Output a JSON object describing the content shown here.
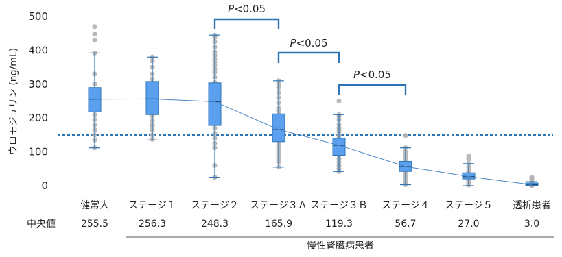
{
  "chart_data": {
    "type": "box",
    "ylabel": "ウロモジュリン (ng/mL)",
    "ylim": [
      0,
      500
    ],
    "yticks": [
      0,
      100,
      200,
      300,
      400,
      500
    ],
    "reference_line": {
      "value": 150,
      "style": "dotted",
      "color": "#2e75b6"
    },
    "categories": [
      "健常人",
      "ステージ１",
      "ステージ２",
      "ステージ３Ａ",
      "ステージ３Ｂ",
      "ステージ４",
      "ステージ５",
      "透析患者"
    ],
    "median_label": "中央値",
    "medians": [
      "255.5",
      "256.3",
      "248.3",
      "165.9",
      "119.3",
      "56.7",
      "27.0",
      "3.0"
    ],
    "group_label": "慢性腎臓病患者",
    "box_color": "#5aa0ee",
    "box_edge_color": "#2e75b6",
    "point_color": "#b3b3b3",
    "boxes": [
      {
        "category": "健常人",
        "min": 112,
        "q1": 218,
        "median": 255.5,
        "q3": 290,
        "max": 392,
        "points": [
          112,
          135,
          150,
          165,
          180,
          195,
          210,
          225,
          240,
          255,
          265,
          280,
          300,
          330,
          392,
          430,
          448,
          470
        ]
      },
      {
        "category": "ステージ１",
        "min": 135,
        "q1": 210,
        "median": 256.3,
        "q3": 308,
        "max": 380,
        "points": [
          137,
          150,
          165,
          175,
          180,
          192,
          205,
          220,
          235,
          250,
          262,
          275,
          288,
          300,
          315,
          330,
          350,
          368,
          380
        ]
      },
      {
        "category": "ステージ２",
        "min": 25,
        "q1": 178,
        "median": 248.3,
        "q3": 304,
        "max": 445,
        "points": [
          25,
          60,
          112,
          125,
          140,
          155,
          170,
          185,
          200,
          215,
          230,
          245,
          260,
          275,
          290,
          305,
          320,
          335,
          345,
          355,
          365,
          375,
          385,
          395,
          410,
          425,
          438,
          445
        ]
      },
      {
        "category": "ステージ３Ａ",
        "min": 55,
        "q1": 130,
        "median": 165.9,
        "q3": 212,
        "max": 310,
        "points": [
          55,
          70,
          80,
          90,
          100,
          110,
          120,
          130,
          140,
          150,
          160,
          170,
          180,
          190,
          200,
          210,
          220,
          230,
          245,
          260,
          275,
          290,
          300,
          310
        ]
      },
      {
        "category": "ステージ３Ｂ",
        "min": 42,
        "q1": 90,
        "median": 119.3,
        "q3": 140,
        "max": 210,
        "points": [
          42,
          50,
          60,
          70,
          80,
          90,
          100,
          110,
          120,
          130,
          140,
          150,
          160,
          170,
          180,
          195,
          205,
          210,
          250
        ]
      },
      {
        "category": "ステージ４",
        "min": 3,
        "q1": 42,
        "median": 56.7,
        "q3": 72,
        "max": 112,
        "points": [
          3,
          10,
          20,
          30,
          40,
          50,
          60,
          70,
          80,
          90,
          100,
          112,
          148
        ]
      },
      {
        "category": "ステージ５",
        "min": 0,
        "q1": 20,
        "median": 27.0,
        "q3": 38,
        "max": 65,
        "points": [
          2,
          8,
          15,
          22,
          30,
          38,
          45,
          55,
          65,
          78,
          88
        ]
      },
      {
        "category": "透析患者",
        "min": 0,
        "q1": 0.5,
        "median": 3.0,
        "q3": 8,
        "max": 12,
        "points": [
          0,
          2,
          5,
          8,
          12,
          20,
          25
        ]
      }
    ],
    "annotations": [
      {
        "text": "P<0.05",
        "from": "ステージ２",
        "to": "ステージ３Ａ"
      },
      {
        "text": "P<0.05",
        "from": "ステージ３Ａ",
        "to": "ステージ３Ｂ"
      },
      {
        "text": "P<0.05",
        "from": "ステージ３Ｂ",
        "to": "ステージ４"
      }
    ]
  }
}
